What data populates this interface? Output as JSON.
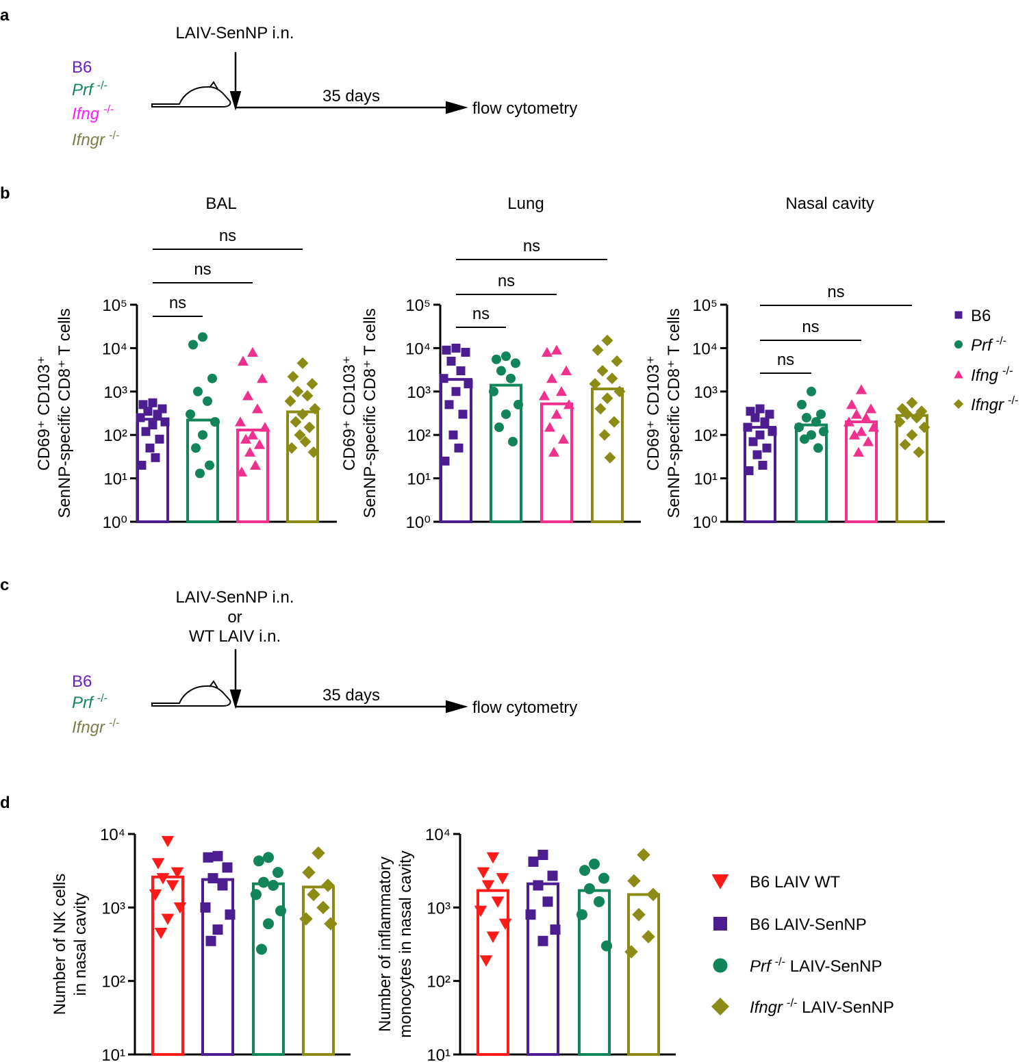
{
  "panel_labels": [
    "a",
    "b",
    "c",
    "d"
  ],
  "diagrams": [
    {
      "treatment": [
        "LAIV-SenNP i.n."
      ],
      "strains": [
        [
          {
            "text": "B6",
            "color": "#6a1fc2"
          }
        ],
        [
          {
            "text": "Prf",
            "style": "i",
            "color": "#12845a"
          },
          {
            "text": "-/-",
            "style": "sup",
            "color": "#12845a"
          }
        ],
        [
          {
            "text": "Ifng",
            "style": "i",
            "color": "#ff1aff"
          },
          {
            "text": "-/-",
            "style": "sup",
            "color": "#ff1aff"
          }
        ],
        [
          {
            "text": "Ifngr",
            "style": "i",
            "color": "#7d7d4a"
          },
          {
            "text": "-/-",
            "style": "sup",
            "color": "#7d7d4a"
          }
        ]
      ],
      "duration": "35 days",
      "readout": "flow cytometry"
    },
    {
      "treatment": [
        "LAIV-SenNP i.n.",
        "or",
        {
          "text": "WT LAIV i.n.",
          "color": "#ff1a1a"
        }
      ],
      "strains": [
        [
          {
            "text": "B6",
            "color": "#6a1fc2"
          }
        ],
        [
          {
            "text": "Prf",
            "style": "i",
            "color": "#12845a"
          },
          {
            "text": "-/-",
            "style": "sup",
            "color": "#12845a"
          }
        ],
        [
          {
            "text": "Ifngr",
            "style": "i",
            "color": "#7d7d4a"
          },
          {
            "text": "-/-",
            "style": "sup",
            "color": "#7d7d4a"
          }
        ]
      ],
      "duration": "35 days",
      "readout": "flow cytometry"
    }
  ],
  "chart_data": [
    {
      "type": "bar-scatter",
      "title": "BAL",
      "y_label": [
        "CD69⁺ CD103⁺",
        "SenNP-specific CD8⁺ T cells"
      ],
      "log_y": true,
      "ylim": [
        1,
        100000
      ],
      "yticks": [
        {
          "value": 1,
          "label": "10⁰"
        },
        {
          "value": 10,
          "label": "10¹"
        },
        {
          "value": 100,
          "label": "10²"
        },
        {
          "value": 1000,
          "label": "10³"
        },
        {
          "value": 10000,
          "label": "10⁴"
        },
        {
          "value": 100000,
          "label": "10⁵"
        }
      ],
      "series": [
        {
          "color": "#4b1d91",
          "marker": "square",
          "mean": 230,
          "points": [
            550,
            500,
            400,
            350,
            300,
            250,
            200,
            170,
            120,
            80,
            50,
            30,
            20
          ]
        },
        {
          "color": "#12845a",
          "marker": "circle",
          "mean": 220,
          "points": [
            18000,
            12000,
            2000,
            1000,
            600,
            300,
            200,
            100,
            50,
            20,
            13
          ]
        },
        {
          "color": "#f0308e",
          "marker": "triangle",
          "mean": 130,
          "points": [
            8000,
            5000,
            2000,
            800,
            400,
            200,
            150,
            100,
            80,
            60,
            40,
            20,
            14
          ]
        },
        {
          "color": "#8b8b16",
          "marker": "diamond",
          "mean": 340,
          "points": [
            4500,
            2200,
            1500,
            1000,
            800,
            600,
            400,
            300,
            200,
            150,
            100,
            70,
            50,
            40
          ]
        }
      ],
      "comparisons": [
        {
          "label": "ns",
          "groups": [
            0,
            1
          ]
        },
        {
          "label": "ns",
          "groups": [
            0,
            2
          ]
        },
        {
          "label": "ns",
          "groups": [
            0,
            3
          ]
        }
      ]
    },
    {
      "type": "bar-scatter",
      "title": "Lung",
      "y_label": [
        "CD69⁺ CD103⁺",
        "SenNP-specific CD8⁺ T cells"
      ],
      "log_y": true,
      "ylim": [
        1,
        100000
      ],
      "yticks": [
        {
          "value": 1,
          "label": "10⁰"
        },
        {
          "value": 10,
          "label": "10¹"
        },
        {
          "value": 100,
          "label": "10²"
        },
        {
          "value": 1000,
          "label": "10³"
        },
        {
          "value": 10000,
          "label": "10⁴"
        },
        {
          "value": 100000,
          "label": "10⁵"
        }
      ],
      "series": [
        {
          "color": "#4b1d91",
          "marker": "square",
          "mean": 1900,
          "points": [
            10000,
            9000,
            8000,
            5000,
            3000,
            2000,
            1500,
            1000,
            500,
            300,
            100,
            50,
            25
          ]
        },
        {
          "color": "#12845a",
          "marker": "circle",
          "mean": 1400,
          "points": [
            6500,
            5500,
            4500,
            3000,
            2000,
            1000,
            500,
            300,
            150,
            70
          ]
        },
        {
          "color": "#f0308e",
          "marker": "triangle",
          "mean": 520,
          "points": [
            9000,
            8000,
            3000,
            2000,
            1000,
            800,
            500,
            300,
            150,
            80,
            40
          ]
        },
        {
          "color": "#8b8b16",
          "marker": "diamond",
          "mean": 1150,
          "points": [
            15000,
            9000,
            5000,
            3000,
            2000,
            1500,
            1000,
            700,
            400,
            200,
            100,
            30
          ]
        }
      ],
      "comparisons": [
        {
          "label": "ns",
          "groups": [
            0,
            1
          ]
        },
        {
          "label": "ns",
          "groups": [
            0,
            2
          ]
        },
        {
          "label": "ns",
          "groups": [
            0,
            3
          ]
        }
      ]
    },
    {
      "type": "bar-scatter",
      "title": "Nasal cavity",
      "y_label": [
        "CD69⁺ CD103⁺",
        "SenNP-specific CD8⁺ T cells"
      ],
      "log_y": true,
      "ylim": [
        1,
        100000
      ],
      "yticks": [
        {
          "value": 1,
          "label": "10⁰"
        },
        {
          "value": 10,
          "label": "10¹"
        },
        {
          "value": 100,
          "label": "10²"
        },
        {
          "value": 1000,
          "label": "10³"
        },
        {
          "value": 10000,
          "label": "10⁴"
        },
        {
          "value": 100000,
          "label": "10⁵"
        }
      ],
      "legend": "right",
      "series": [
        {
          "name": [
            {
              "text": "B6"
            }
          ],
          "color": "#4b1d91",
          "marker": "square",
          "mean": 150,
          "points": [
            400,
            350,
            300,
            250,
            200,
            150,
            120,
            100,
            70,
            50,
            35,
            20,
            15
          ]
        },
        {
          "name": [
            {
              "text": "Prf",
              "style": "i"
            },
            {
              "text": "-/-",
              "style": "sup"
            }
          ],
          "color": "#12845a",
          "marker": "circle",
          "mean": 170,
          "points": [
            1000,
            500,
            300,
            250,
            200,
            150,
            120,
            100,
            80,
            50
          ]
        },
        {
          "name": [
            {
              "text": "Ifng",
              "style": "i"
            },
            {
              "text": "-/-",
              "style": "sup"
            }
          ],
          "color": "#f0308e",
          "marker": "triangle",
          "mean": 200,
          "points": [
            1100,
            500,
            400,
            300,
            250,
            200,
            150,
            120,
            100,
            70,
            40
          ]
        },
        {
          "name": [
            {
              "text": "Ifngr",
              "style": "i"
            },
            {
              "text": "-/-",
              "style": "sup"
            }
          ],
          "color": "#8b8b16",
          "marker": "diamond",
          "mean": 280,
          "points": [
            550,
            400,
            350,
            300,
            250,
            200,
            150,
            100,
            60,
            40
          ]
        }
      ],
      "comparisons": [
        {
          "label": "ns",
          "groups": [
            0,
            1
          ]
        },
        {
          "label": "ns",
          "groups": [
            0,
            2
          ]
        },
        {
          "label": "ns",
          "groups": [
            0,
            3
          ]
        }
      ]
    },
    {
      "type": "bar-scatter",
      "y_label": [
        "Number of NK cells",
        "in nasal cavity"
      ],
      "log_y": true,
      "ylim": [
        10,
        10000
      ],
      "yticks": [
        {
          "value": 10,
          "label": "10¹"
        },
        {
          "value": 100,
          "label": "10²"
        },
        {
          "value": 1000,
          "label": "10³"
        },
        {
          "value": 10000,
          "label": "10⁴"
        }
      ],
      "series": [
        {
          "color": "#ff1a1a",
          "marker": "triangle-down",
          "mean": 2600,
          "points": [
            8000,
            4000,
            3000,
            2500,
            2000,
            1500,
            1000,
            700,
            450
          ]
        },
        {
          "color": "#4b1d91",
          "marker": "square",
          "mean": 2400,
          "points": [
            5000,
            4800,
            3500,
            2500,
            2000,
            1000,
            800,
            500,
            350
          ]
        },
        {
          "color": "#12845a",
          "marker": "circle",
          "mean": 2100,
          "points": [
            4800,
            4300,
            3000,
            2200,
            2000,
            1500,
            900,
            600,
            270
          ]
        },
        {
          "color": "#8b8b16",
          "marker": "diamond",
          "mean": 1900,
          "points": [
            5500,
            3000,
            2000,
            1500,
            1000,
            700,
            600
          ]
        }
      ]
    },
    {
      "type": "bar-scatter",
      "y_label": [
        "Number of inflammatory",
        "monocytes in nasal cavity"
      ],
      "log_y": true,
      "ylim": [
        10,
        10000
      ],
      "yticks": [
        {
          "value": 10,
          "label": "10¹"
        },
        {
          "value": 100,
          "label": "10²"
        },
        {
          "value": 1000,
          "label": "10³"
        },
        {
          "value": 10000,
          "label": "10⁴"
        }
      ],
      "legend": "right",
      "series": [
        {
          "name": [
            {
              "text": "B6 LAIV WT"
            }
          ],
          "color": "#ff1a1a",
          "marker": "triangle-down",
          "mean": 1700,
          "points": [
            4800,
            3000,
            2500,
            2000,
            1200,
            900,
            600,
            400,
            190
          ]
        },
        {
          "name": [
            {
              "text": "B6 LAIV-SenNP"
            }
          ],
          "color": "#4b1d91",
          "marker": "square",
          "mean": 2100,
          "points": [
            5200,
            4200,
            2700,
            2000,
            1200,
            800,
            500,
            350
          ]
        },
        {
          "name": [
            {
              "text": "Prf",
              "style": "i"
            },
            {
              "text": "-/-",
              "style": "sup"
            },
            {
              "text": " LAIV-SenNP"
            }
          ],
          "color": "#12845a",
          "marker": "circle",
          "mean": 1700,
          "points": [
            3900,
            3200,
            2500,
            1800,
            1200,
            800,
            300
          ]
        },
        {
          "name": [
            {
              "text": "Ifngr",
              "style": "i"
            },
            {
              "text": "-/-",
              "style": "sup"
            },
            {
              "text": " LAIV-SenNP"
            }
          ],
          "color": "#8b8b16",
          "marker": "diamond",
          "mean": 1500,
          "points": [
            5200,
            2300,
            1500,
            800,
            400,
            250
          ]
        }
      ]
    }
  ]
}
